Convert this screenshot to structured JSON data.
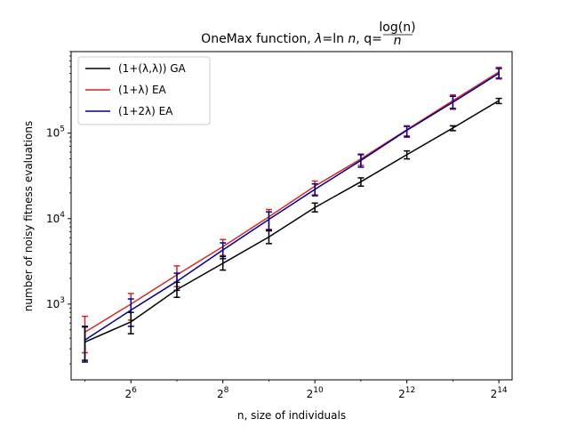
{
  "chart_data": {
    "type": "line",
    "title": "OneMax function, λ=ln n, q=log(n)/n",
    "title_parts": {
      "prefix": "OneMax function, ",
      "lambda": "λ",
      "eq": "=ln ",
      "n": "n",
      "q": ", q=",
      "num": "log(n)",
      "den": "n"
    },
    "xlabel": "n, size of individuals",
    "ylabel": "number of noisy fitness evaluations",
    "x_scale": "log2",
    "y_scale": "log10",
    "xlim": [
      26,
      20000
    ],
    "ylim": [
      130,
      900000
    ],
    "x_ticks": [
      {
        "value": 64,
        "base": "2",
        "exp": "6"
      },
      {
        "value": 256,
        "base": "2",
        "exp": "8"
      },
      {
        "value": 1024,
        "base": "2",
        "exp": "10"
      },
      {
        "value": 4096,
        "base": "2",
        "exp": "12"
      },
      {
        "value": 16384,
        "base": "2",
        "exp": "14"
      }
    ],
    "y_ticks": [
      {
        "value": 1000,
        "base": "10",
        "exp": "3"
      },
      {
        "value": 10000,
        "base": "10",
        "exp": "4"
      },
      {
        "value": 100000,
        "base": "10",
        "exp": "5"
      }
    ],
    "x": [
      32,
      64,
      128,
      256,
      512,
      1024,
      2048,
      4096,
      8192,
      16384
    ],
    "legend_position": "top-left",
    "series": [
      {
        "name": "(1+(λ,λ)) GA",
        "color": "#000000",
        "values": [
          360,
          620,
          1480,
          3000,
          6100,
          13500,
          27000,
          56000,
          115000,
          240000
        ],
        "err_low": [
          220,
          450,
          1200,
          2500,
          5100,
          12000,
          24000,
          50000,
          107000,
          222000
        ],
        "err_high": [
          550,
          800,
          1800,
          3600,
          7300,
          15200,
          30000,
          62000,
          122000,
          255000
        ]
      },
      {
        "name": "(1+λ) EA",
        "color": "#d62728",
        "values": [
          470,
          1000,
          2200,
          4700,
          10500,
          24000,
          50000,
          110000,
          240000,
          520000
        ],
        "err_low": [
          270,
          650,
          1600,
          3700,
          7500,
          19000,
          42000,
          93000,
          190000,
          430000
        ],
        "err_high": [
          720,
          1330,
          2800,
          5700,
          12800,
          27500,
          57000,
          122000,
          280000,
          590000
        ]
      },
      {
        "name": "(1+2λ) EA",
        "color": "#00008b",
        "values": [
          380,
          850,
          1850,
          4300,
          9800,
          22000,
          48000,
          108000,
          230000,
          500000
        ],
        "err_low": [
          210,
          550,
          1450,
          3400,
          7200,
          18500,
          40000,
          90000,
          195000,
          440000
        ],
        "err_high": [
          540,
          1150,
          2300,
          5200,
          12000,
          25500,
          56000,
          120000,
          270000,
          570000
        ]
      }
    ]
  }
}
